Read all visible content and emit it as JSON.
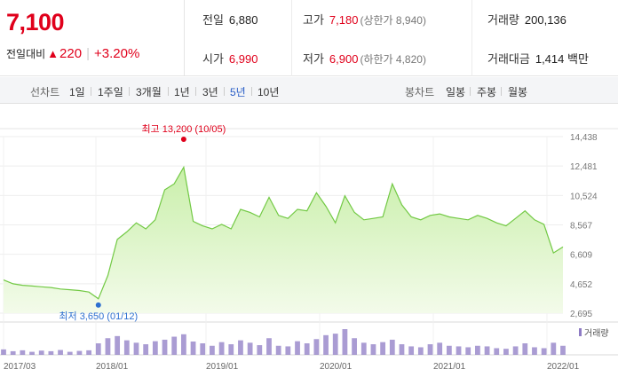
{
  "quote": {
    "price": "7,100",
    "change_label": "전일대비",
    "change_arrow": "▲",
    "change_value": "220",
    "change_pct": "+3.20%",
    "prev_close": {
      "label": "전일",
      "value": "6,880"
    },
    "open": {
      "label": "시가",
      "value": "6,990"
    },
    "high": {
      "label": "고가",
      "value": "7,180",
      "note": "(상한가 8,940)"
    },
    "low": {
      "label": "저가",
      "value": "6,900",
      "note": "(하한가 4,820)"
    },
    "volume": {
      "label": "거래량",
      "value": "200,136"
    },
    "amount": {
      "label": "거래대금",
      "value": "1,414 백만"
    }
  },
  "tabs": {
    "line_label": "선차트",
    "periods": [
      "1일",
      "1주일",
      "3개월",
      "1년",
      "3년",
      "5년",
      "10년"
    ],
    "active_period": "5년",
    "candle_label": "봉차트",
    "candles": [
      "일봉",
      "주봉",
      "월봉"
    ]
  },
  "colors": {
    "up": "#e0001b",
    "line": "#72c944",
    "fill": "#c9efaa",
    "volume": "#8e7bc4",
    "active_tab": "#2b5fc7",
    "low_marker": "#2d6fd0"
  },
  "chart_data": {
    "type": "area",
    "title": "",
    "ylim": [
      2695,
      14438
    ],
    "y_ticks": [
      "14,438",
      "12,481",
      "10,524",
      "8,567",
      "6,609",
      "4,652",
      "2,695"
    ],
    "x_ticks": [
      "2017/03",
      "2018/01",
      "2019/01",
      "2020/01",
      "2021/01",
      "2022/01"
    ],
    "max_label": "최고 13,200 (10/05)",
    "min_label": "최저 3,650 (01/12)",
    "max_point": {
      "x": "2018/10/05",
      "y": 13200
    },
    "min_point": {
      "x": "2018/01/12",
      "y": 3650
    },
    "volume_legend": "거래량",
    "x": [
      "2017/03",
      "2017/04",
      "2017/05",
      "2017/06",
      "2017/07",
      "2017/08",
      "2017/09",
      "2017/10",
      "2017/11",
      "2017/12",
      "2018/01",
      "2018/02",
      "2018/03",
      "2018/04",
      "2018/05",
      "2018/06",
      "2018/07",
      "2018/08",
      "2018/09",
      "2018/10",
      "2018/11",
      "2018/12",
      "2019/01",
      "2019/02",
      "2019/03",
      "2019/04",
      "2019/05",
      "2019/06",
      "2019/07",
      "2019/08",
      "2019/09",
      "2019/10",
      "2019/11",
      "2019/12",
      "2020/01",
      "2020/02",
      "2020/03",
      "2020/04",
      "2020/05",
      "2020/06",
      "2020/07",
      "2020/08",
      "2020/09",
      "2020/10",
      "2020/11",
      "2020/12",
      "2021/01",
      "2021/02",
      "2021/03",
      "2021/04",
      "2021/05",
      "2021/06",
      "2021/07",
      "2021/08",
      "2021/09",
      "2021/10",
      "2021/11",
      "2021/12",
      "2022/01",
      "2022/02"
    ],
    "series": [
      {
        "values": [
          4900,
          4650,
          4550,
          4500,
          4450,
          4400,
          4300,
          4250,
          4200,
          4100,
          3650,
          5200,
          7600,
          8100,
          8700,
          8300,
          8900,
          10900,
          11300,
          12400,
          8800,
          8500,
          8300,
          8600,
          8300,
          9600,
          9400,
          9100,
          10400,
          9200,
          9000,
          9600,
          9500,
          10700,
          9800,
          8700,
          10500,
          9400,
          8900,
          9000,
          9100,
          11300,
          9900,
          9100,
          8900,
          9200,
          9300,
          9100,
          9000,
          8900,
          9200,
          9000,
          8700,
          8500,
          9000,
          9500,
          8900,
          8600,
          6700,
          7100
        ]
      },
      {
        "values": [
          18,
          12,
          15,
          10,
          14,
          12,
          16,
          10,
          13,
          15,
          38,
          55,
          62,
          48,
          40,
          35,
          45,
          50,
          60,
          68,
          44,
          38,
          30,
          42,
          35,
          48,
          40,
          32,
          55,
          30,
          28,
          45,
          38,
          52,
          65,
          70,
          85,
          55,
          40,
          35,
          42,
          50,
          35,
          28,
          25,
          35,
          40,
          30,
          28,
          25,
          30,
          28,
          22,
          20,
          28,
          38,
          25,
          22,
          40,
          30
        ]
      }
    ]
  }
}
